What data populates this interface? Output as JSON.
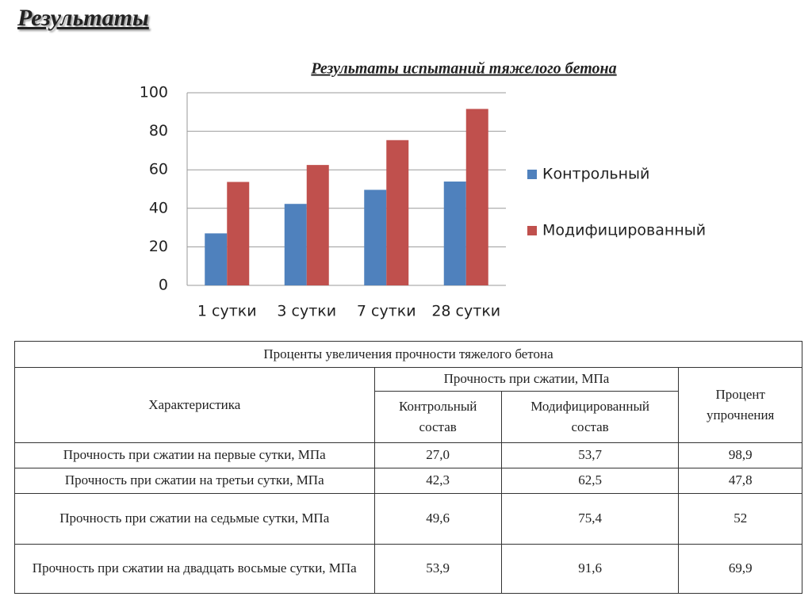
{
  "heading": "Результаты",
  "chart_data": {
    "type": "bar",
    "title": "Результаты испытаний тяжелого бетона",
    "categories": [
      "1 сутки",
      "3 сутки",
      "7 сутки",
      "28 сутки"
    ],
    "series": [
      {
        "name": "Контрольный",
        "color": "#4f81bd",
        "values": [
          27.0,
          42.3,
          49.6,
          53.9
        ]
      },
      {
        "name": "Модифицированный",
        "color": "#c0504d",
        "values": [
          53.7,
          62.5,
          75.4,
          91.6
        ]
      }
    ],
    "ylim": [
      0,
      100
    ],
    "yticks": [
      0,
      20,
      40,
      60,
      80,
      100
    ],
    "grid": true,
    "legend": "right"
  },
  "table": {
    "title": "Проценты увеличения прочности тяжелого бетона",
    "header": {
      "characteristic": "Характеристика",
      "strength": "Прочность при сжатии, МПа",
      "control": "Контрольный состав",
      "modified": "Модифицированный состав",
      "percent": "Процент упрочнения"
    },
    "rows": [
      [
        "Прочность при сжатии на первые сутки, МПа",
        "27,0",
        "53,7",
        "98,9"
      ],
      [
        "Прочность при сжатии на третьи сутки, МПа",
        "42,3",
        "62,5",
        "47,8"
      ],
      [
        "Прочность при сжатии на седьмые сутки, МПа",
        "49,6",
        "75,4",
        "52"
      ],
      [
        "Прочность при сжатии на двадцать восьмые сутки, МПа",
        "53,9",
        "91,6",
        "69,9"
      ]
    ]
  }
}
